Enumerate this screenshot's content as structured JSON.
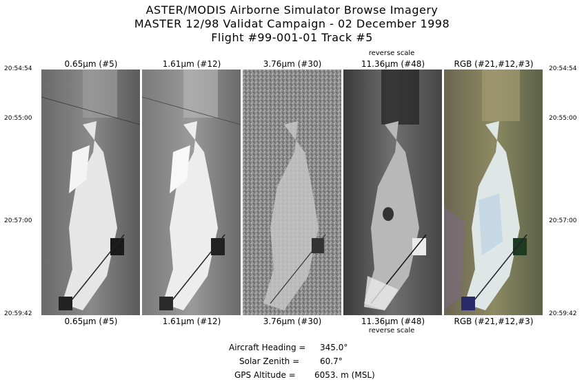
{
  "title": {
    "line1": "ASTER/MODIS Airborne Simulator Browse Imagery",
    "line2": "MASTER 12/98 Validat Campaign - 02 December 1998",
    "line3": "Flight #99-001-01 Track #5"
  },
  "timestamps": {
    "left": [
      "20:54:54",
      "20:55:00",
      "20:57:00",
      "20:59:42"
    ],
    "right": [
      "20:54:54",
      "20:55:00",
      "20:57:00",
      "20:59:42"
    ]
  },
  "bands": [
    {
      "label": "0.65μm (#5)",
      "note_top": "",
      "note_bottom": ""
    },
    {
      "label": "1.61μm (#12)",
      "note_top": "",
      "note_bottom": ""
    },
    {
      "label": "3.76μm (#30)",
      "note_top": "",
      "note_bottom": ""
    },
    {
      "label": "11.36μm (#48)",
      "note_top": "reverse scale",
      "note_bottom": "reverse scale"
    },
    {
      "label": "RGB (#21,#12,#3)",
      "note_top": "",
      "note_bottom": ""
    }
  ],
  "info": {
    "heading_label": "Aircraft Heading =",
    "heading_value": "345.0°",
    "zenith_label": "Solar Zenith =",
    "zenith_value": "60.7°",
    "altitude_label": "GPS Altitude =",
    "altitude_value": "6053. m (MSL)"
  }
}
